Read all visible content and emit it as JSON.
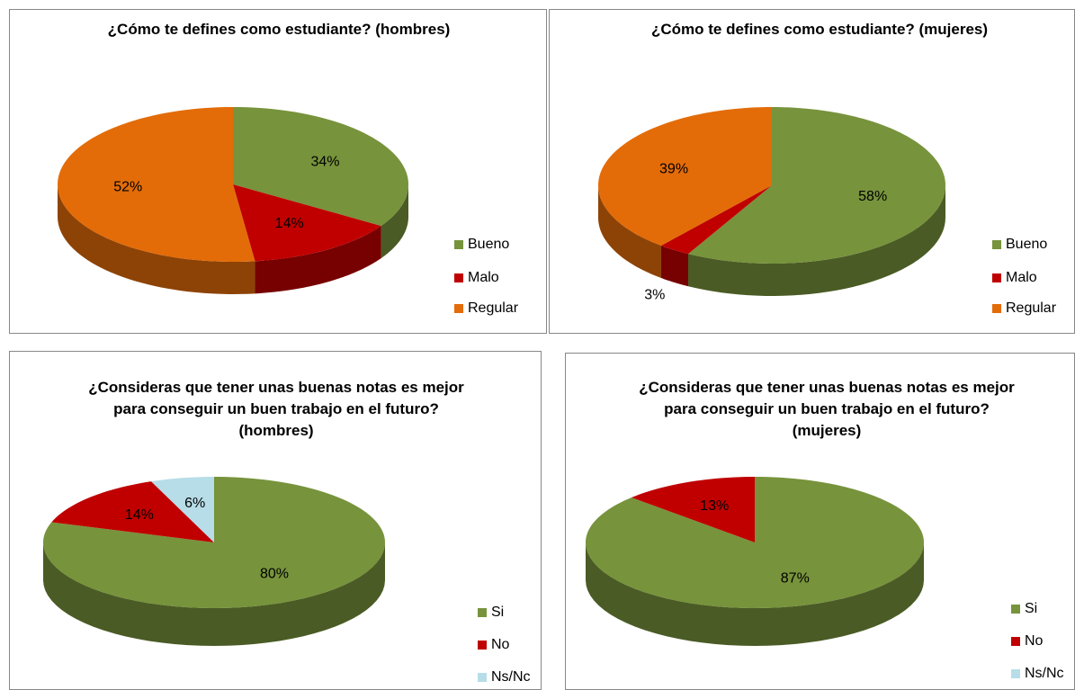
{
  "chart_data": [
    {
      "type": "pie",
      "title": "¿Cómo te defines como estudiante? (hombres)",
      "categories": [
        "Bueno",
        "Malo",
        "Regular"
      ],
      "values": [
        34,
        14,
        52
      ],
      "value_labels": [
        "34%",
        "14%",
        "52%"
      ],
      "colors": [
        "#77933c",
        "#c00000",
        "#e36c09"
      ],
      "legend": "right"
    },
    {
      "type": "pie",
      "title": "¿Cómo te defines como estudiante? (mujeres)",
      "categories": [
        "Bueno",
        "Malo",
        "Regular"
      ],
      "values": [
        58,
        3,
        39
      ],
      "value_labels": [
        "58%",
        "3%",
        "39%"
      ],
      "colors": [
        "#77933c",
        "#c00000",
        "#e36c09"
      ],
      "legend": "right"
    },
    {
      "type": "pie",
      "title": "¿Consideras que tener unas buenas notas es mejor para conseguir un buen trabajo en el futuro? (hombres)",
      "categories": [
        "Si",
        "No",
        "Ns/Nc"
      ],
      "values": [
        80,
        14,
        6
      ],
      "value_labels": [
        "80%",
        "14%",
        "6%"
      ],
      "colors": [
        "#77933c",
        "#c00000",
        "#b7dde8"
      ],
      "legend": "right"
    },
    {
      "type": "pie",
      "title": "¿Consideras que tener unas buenas notas es mejor para conseguir un buen trabajo en el futuro? (mujeres)",
      "categories": [
        "Si",
        "No",
        "Ns/Nc"
      ],
      "values": [
        87,
        13,
        0
      ],
      "value_labels": [
        "87%",
        "13%",
        null
      ],
      "colors": [
        "#77933c",
        "#c00000",
        "#b7dde8"
      ],
      "legend": "right"
    }
  ]
}
